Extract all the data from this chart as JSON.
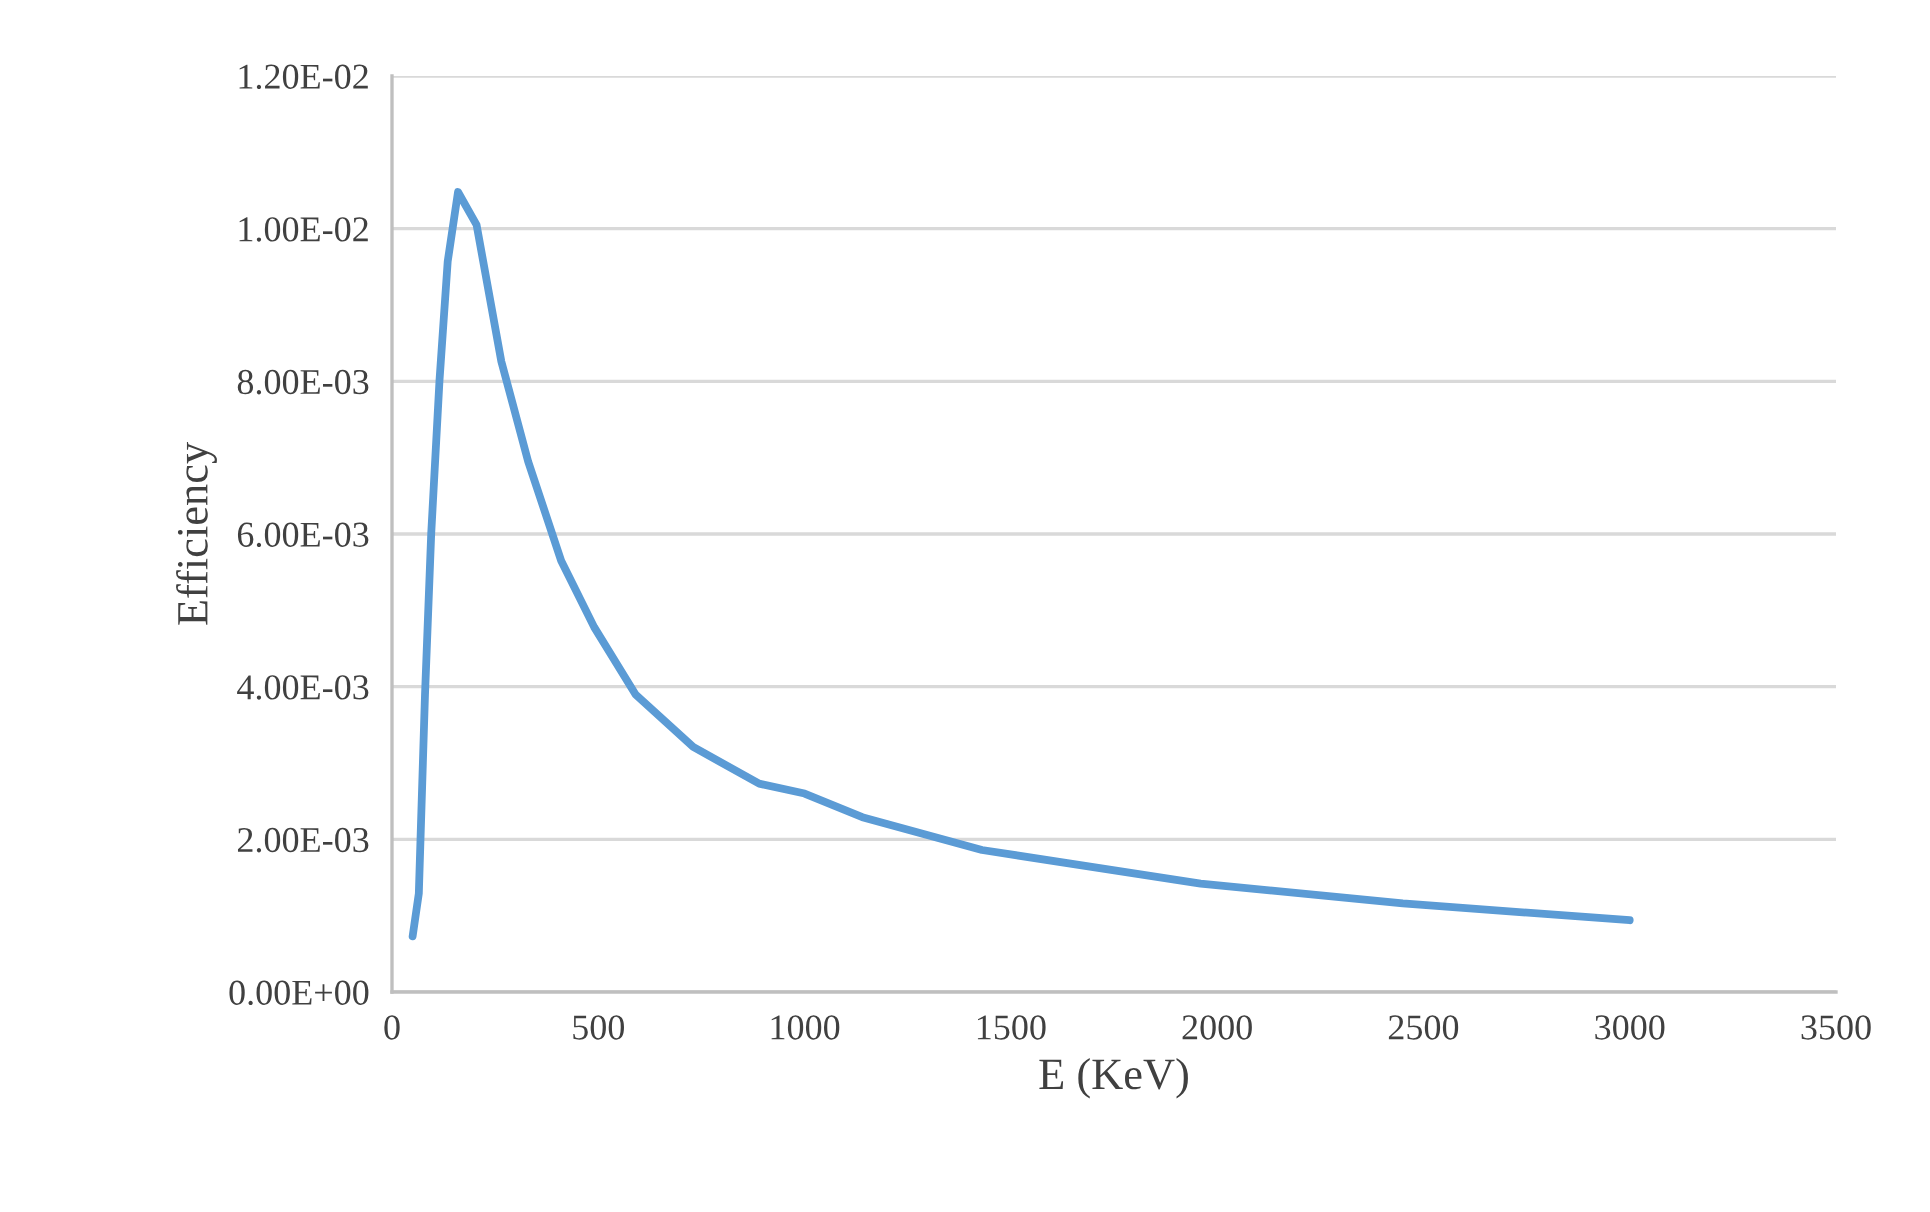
{
  "chart_data": {
    "type": "line",
    "xlabel": "E (KeV)",
    "ylabel": "Efficiency",
    "x": [
      50,
      65,
      80,
      95,
      115,
      135,
      160,
      205,
      265,
      330,
      410,
      490,
      590,
      730,
      890,
      1000,
      1140,
      1430,
      1960,
      2450,
      3000
    ],
    "series": [
      {
        "color": "#5b9bd5",
        "values": [
          0.00073,
          0.00129,
          0.0039,
          0.006,
          0.008,
          0.00957,
          0.01048,
          0.01005,
          0.00826,
          0.00695,
          0.00565,
          0.00478,
          0.0039,
          0.00321,
          0.00273,
          0.0026,
          0.00229,
          0.00186,
          0.00142,
          0.00116,
          0.00094
        ]
      }
    ],
    "xlim": [
      0,
      3500
    ],
    "xticks": [
      0,
      500,
      1000,
      1500,
      2000,
      2500,
      3000,
      3500
    ],
    "ylim": [
      0,
      0.012
    ],
    "yticks": [
      {
        "value": 0,
        "label": "0.00E+00"
      },
      {
        "value": 0.002,
        "label": "2.00E-03"
      },
      {
        "value": 0.004,
        "label": "4.00E-03"
      },
      {
        "value": 0.006,
        "label": "6.00E-03"
      },
      {
        "value": 0.008,
        "label": "8.00E-03"
      },
      {
        "value": 0.01,
        "label": "1.00E-02"
      },
      {
        "value": 0.012,
        "label": "1.20E-02"
      }
    ],
    "grid": "y",
    "marker": "none",
    "line_style": "solid"
  }
}
